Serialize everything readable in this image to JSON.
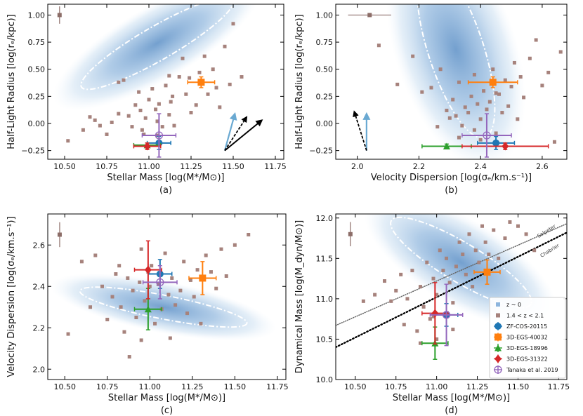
{
  "chart_data": [
    {
      "panel": "(a)",
      "type": "scatter",
      "xlabel": "Stellar Mass [log(M*/M⊙)]",
      "ylabel": "Half-Light Radius [log(rₑ/kpc)]",
      "xlim": [
        10.4,
        11.8
      ],
      "ylim": [
        -0.33,
        1.1
      ],
      "xticks": [
        "10.50",
        "10.75",
        "11.00",
        "11.25",
        "11.50",
        "11.75"
      ],
      "yticks": [
        "−0.25",
        "0.00",
        "0.25",
        "0.50",
        "0.75",
        "1.00"
      ],
      "density_ellipse": {
        "cx": 11.05,
        "cy": 0.74,
        "rx": 0.52,
        "ry": 0.1,
        "angle": 30
      },
      "typical_error": {
        "x": 10.47,
        "y": 1.0,
        "yerr": 0.08
      },
      "background_points": [
        [
          10.52,
          -0.16
        ],
        [
          10.61,
          -0.06
        ],
        [
          10.65,
          0.06
        ],
        [
          10.68,
          0.03
        ],
        [
          10.71,
          -0.02
        ],
        [
          10.75,
          -0.1
        ],
        [
          10.78,
          0.01
        ],
        [
          10.82,
          0.09
        ],
        [
          10.85,
          0.4
        ],
        [
          10.88,
          0.07
        ],
        [
          10.9,
          -0.03
        ],
        [
          10.92,
          0.17
        ],
        [
          10.95,
          0.12
        ],
        [
          10.96,
          -0.06
        ],
        [
          10.98,
          0.05
        ],
        [
          11.0,
          0.22
        ],
        [
          11.02,
          0.32
        ],
        [
          11.04,
          0.13
        ],
        [
          11.05,
          0.02
        ],
        [
          11.06,
          0.18
        ],
        [
          11.08,
          -0.03
        ],
        [
          11.1,
          0.35
        ],
        [
          11.12,
          0.08
        ],
        [
          11.14,
          0.25
        ],
        [
          11.15,
          -0.02
        ],
        [
          11.18,
          0.43
        ],
        [
          11.2,
          0.6
        ],
        [
          11.22,
          0.27
        ],
        [
          11.25,
          0.1
        ],
        [
          11.28,
          0.17
        ],
        [
          11.3,
          0.47
        ],
        [
          11.33,
          0.62
        ],
        [
          11.35,
          0.27
        ],
        [
          11.38,
          0.5
        ],
        [
          11.4,
          0.33
        ],
        [
          11.42,
          0.15
        ],
        [
          11.45,
          0.71
        ],
        [
          11.48,
          0.36
        ],
        [
          11.5,
          0.92
        ],
        [
          11.55,
          0.43
        ],
        [
          10.82,
          0.38
        ],
        [
          10.94,
          0.29
        ],
        [
          11.12,
          0.44
        ],
        [
          11.24,
          0.42
        ],
        [
          11.05,
          -0.11
        ],
        [
          10.97,
          -0.1
        ],
        [
          11.13,
          0.2
        ]
      ],
      "highlighted": [
        {
          "name": "ZF-COS-20115",
          "x": 11.06,
          "y": -0.18,
          "xerr": 0.07,
          "yerr": 0.06
        },
        {
          "name": "3D-EGS-40032",
          "x": 11.31,
          "y": 0.38,
          "xerr": 0.08,
          "yerr": 0.05
        },
        {
          "name": "3D-EGS-18996",
          "x": 10.99,
          "y": -0.2,
          "xerr": 0.08,
          "yerr": 0.02
        },
        {
          "name": "3D-EGS-31322",
          "x": 10.99,
          "y": -0.21,
          "xerr": 0.08,
          "yerr": 0.03
        },
        {
          "name": "Tanaka et al. 2019",
          "x": 11.06,
          "y": -0.11,
          "xerr": 0.1,
          "yerr": 0.2
        }
      ],
      "arrows": [
        {
          "x0": 11.45,
          "y0": -0.25,
          "x1": 11.51,
          "y1": 0.09,
          "style": "light-blue"
        },
        {
          "x0": 11.45,
          "y0": -0.25,
          "x1": 11.58,
          "y1": 0.06,
          "style": "black-dashed"
        },
        {
          "x0": 11.45,
          "y0": -0.25,
          "x1": 11.67,
          "y1": 0.03,
          "style": "black"
        }
      ]
    },
    {
      "panel": "(b)",
      "type": "scatter",
      "xlabel": "Velocity Dispersion [log(σₑ/km.s⁻¹)]",
      "ylabel": "Half-Light Radius [log(rₑ/kpc)]",
      "xlim": [
        1.93,
        2.68
      ],
      "ylim": [
        -0.33,
        1.1
      ],
      "xticks": [
        "2.0",
        "2.2",
        "2.4",
        "2.6"
      ],
      "yticks": [
        "−0.25",
        "0.00",
        "0.25",
        "0.50",
        "0.75",
        "1.00"
      ],
      "density_ellipse": {
        "cx": 2.32,
        "cy": 0.68,
        "rx": 0.3,
        "ry": 0.09,
        "angle": 108
      },
      "typical_error": {
        "x": 2.04,
        "y": 1.0,
        "xerr": 0.07
      },
      "background_points": [
        [
          2.07,
          0.72
        ],
        [
          2.13,
          0.36
        ],
        [
          2.18,
          0.62
        ],
        [
          2.21,
          0.29
        ],
        [
          2.24,
          0.33
        ],
        [
          2.27,
          0.5
        ],
        [
          2.29,
          0.12
        ],
        [
          2.3,
          0.05
        ],
        [
          2.31,
          0.22
        ],
        [
          2.32,
          0.07
        ],
        [
          2.33,
          0.38
        ],
        [
          2.34,
          -0.02
        ],
        [
          2.35,
          0.15
        ],
        [
          2.36,
          0.1
        ],
        [
          2.37,
          0.25
        ],
        [
          2.38,
          -0.06
        ],
        [
          2.39,
          0.18
        ],
        [
          2.4,
          0.04
        ],
        [
          2.41,
          0.3
        ],
        [
          2.42,
          0.13
        ],
        [
          2.43,
          0.2
        ],
        [
          2.44,
          0.5
        ],
        [
          2.45,
          -0.09
        ],
        [
          2.46,
          0.27
        ],
        [
          2.47,
          0.1
        ],
        [
          2.48,
          0.4
        ],
        [
          2.49,
          0.16
        ],
        [
          2.5,
          0.34
        ],
        [
          2.51,
          0.56
        ],
        [
          2.52,
          0.04
        ],
        [
          2.53,
          0.43
        ],
        [
          2.54,
          0.24
        ],
        [
          2.56,
          0.6
        ],
        [
          2.58,
          0.77
        ],
        [
          2.6,
          0.35
        ],
        [
          2.62,
          0.47
        ],
        [
          2.64,
          -0.17
        ],
        [
          2.66,
          0.66
        ],
        [
          2.33,
          -0.13
        ],
        [
          2.38,
          0.45
        ],
        [
          2.45,
          0.28
        ],
        [
          2.26,
          -0.03
        ],
        [
          2.4,
          -0.15
        ]
      ],
      "highlighted": [
        {
          "name": "ZF-COS-20115",
          "x": 2.45,
          "y": -0.18,
          "xerr": 0.06,
          "yerr": 0.06
        },
        {
          "name": "3D-EGS-40032",
          "x": 2.44,
          "y": 0.38,
          "xerr": 0.08,
          "yerr": 0.05
        },
        {
          "name": "3D-EGS-18996",
          "x": 2.29,
          "y": -0.21,
          "xerr": 0.08,
          "yerr": 0.02
        },
        {
          "name": "3D-EGS-31322",
          "x": 2.48,
          "y": -0.21,
          "xerr": 0.14,
          "yerr": 0.03
        },
        {
          "name": "Tanaka et al. 2019",
          "x": 2.42,
          "y": -0.11,
          "xerr": 0.08,
          "yerr": 0.2
        }
      ],
      "arrows": [
        {
          "x0": 2.03,
          "y0": -0.25,
          "x1": 2.03,
          "y1": 0.09,
          "style": "light-blue"
        },
        {
          "x0": 2.03,
          "y0": -0.25,
          "x1": 1.99,
          "y1": 0.11,
          "style": "black-dashed"
        }
      ]
    },
    {
      "panel": "(c)",
      "type": "scatter",
      "xlabel": "Stellar Mass [log(M*/M⊙)]",
      "ylabel": "Velocity Dispersion [log(σₑ/km.s⁻¹)]",
      "xlim": [
        10.4,
        11.8
      ],
      "ylim": [
        1.95,
        2.75
      ],
      "xticks": [
        "10.50",
        "10.75",
        "11.00",
        "11.25",
        "11.50",
        "11.75"
      ],
      "yticks": [
        "2.0",
        "2.2",
        "2.4",
        "2.6"
      ],
      "density_ellipse": {
        "cx": 11.08,
        "cy": 2.3,
        "rx": 0.5,
        "ry": 0.07,
        "angle": -11
      },
      "typical_error": {
        "x": 10.47,
        "y": 2.65,
        "yerr": 0.06
      },
      "background_points": [
        [
          10.52,
          2.17
        ],
        [
          10.6,
          2.52
        ],
        [
          10.65,
          2.3
        ],
        [
          10.68,
          2.55
        ],
        [
          10.72,
          2.4
        ],
        [
          10.75,
          2.24
        ],
        [
          10.78,
          2.35
        ],
        [
          10.8,
          2.46
        ],
        [
          10.83,
          2.3
        ],
        [
          10.85,
          2.18
        ],
        [
          10.87,
          2.44
        ],
        [
          10.88,
          2.06
        ],
        [
          10.9,
          2.38
        ],
        [
          10.92,
          2.25
        ],
        [
          10.94,
          2.42
        ],
        [
          10.95,
          2.14
        ],
        [
          10.97,
          2.33
        ],
        [
          10.99,
          2.47
        ],
        [
          11.01,
          2.5
        ],
        [
          11.03,
          2.22
        ],
        [
          11.05,
          2.41
        ],
        [
          11.07,
          2.29
        ],
        [
          11.09,
          2.56
        ],
        [
          11.11,
          2.36
        ],
        [
          11.13,
          2.44
        ],
        [
          11.15,
          2.31
        ],
        [
          11.18,
          2.38
        ],
        [
          11.2,
          2.52
        ],
        [
          11.22,
          2.27
        ],
        [
          11.24,
          2.43
        ],
        [
          11.26,
          2.35
        ],
        [
          11.28,
          2.48
        ],
        [
          11.3,
          2.22
        ],
        [
          11.33,
          2.55
        ],
        [
          11.36,
          2.47
        ],
        [
          11.39,
          2.39
        ],
        [
          11.42,
          2.58
        ],
        [
          11.45,
          2.45
        ],
        [
          11.5,
          2.6
        ],
        [
          11.58,
          2.65
        ],
        [
          10.95,
          2.58
        ],
        [
          10.82,
          2.5
        ],
        [
          11.12,
          2.15
        ],
        [
          11.0,
          2.4
        ]
      ],
      "highlighted": [
        {
          "name": "ZF-COS-20115",
          "x": 11.06,
          "y": 2.46,
          "xerr": 0.07,
          "yerr": 0.07
        },
        {
          "name": "3D-EGS-40032",
          "x": 11.31,
          "y": 2.44,
          "xerr": 0.08,
          "yerr": 0.08
        },
        {
          "name": "3D-EGS-18996",
          "x": 10.99,
          "y": 2.29,
          "xerr": 0.08,
          "yerr": 0.1
        },
        {
          "name": "3D-EGS-31322",
          "x": 10.99,
          "y": 2.48,
          "xerr": 0.08,
          "yerr": 0.14
        },
        {
          "name": "Tanaka et al. 2019",
          "x": 11.06,
          "y": 2.42,
          "xerr": 0.1,
          "yerr": 0.08
        }
      ]
    },
    {
      "panel": "(d)",
      "type": "scatter",
      "xlabel": "Stellar Mass [log(M*/M⊙)]",
      "ylabel": "Dynamical Mass [log(M_dyn/M⊙)]",
      "xlim": [
        10.38,
        11.8
      ],
      "ylim": [
        10.0,
        12.05
      ],
      "xticks": [
        "10.50",
        "10.75",
        "11.00",
        "11.25",
        "11.50",
        "11.75"
      ],
      "yticks": [
        "10.0",
        "10.5",
        "11.0",
        "11.5",
        "12.0"
      ],
      "density_ellipse": {
        "cx": 11.15,
        "cy": 11.45,
        "rx": 0.5,
        "ry": 0.12,
        "angle": -31
      },
      "typical_error": {
        "x": 10.47,
        "y": 11.8,
        "yerr": 0.15
      },
      "reference_lines": [
        {
          "name": "Salpeter",
          "x": [
            10.38,
            11.8
          ],
          "y": [
            10.67,
            11.93
          ],
          "style": "dotted-gray"
        },
        {
          "name": "Chabrier",
          "x": [
            10.38,
            11.8
          ],
          "y": [
            10.4,
            11.82
          ],
          "style": "dotted-black"
        }
      ],
      "line_labels": [
        "Salpeter",
        "Chabrier"
      ],
      "background_points": [
        [
          10.55,
          10.97
        ],
        [
          10.62,
          11.05
        ],
        [
          10.68,
          11.22
        ],
        [
          10.72,
          10.97
        ],
        [
          10.75,
          11.1
        ],
        [
          10.78,
          11.3
        ],
        [
          10.8,
          10.68
        ],
        [
          10.82,
          11.0
        ],
        [
          10.85,
          11.35
        ],
        [
          10.88,
          10.6
        ],
        [
          10.9,
          11.15
        ],
        [
          10.92,
          10.9
        ],
        [
          10.94,
          11.45
        ],
        [
          10.96,
          10.75
        ],
        [
          10.98,
          11.25
        ],
        [
          11.0,
          11.05
        ],
        [
          11.02,
          11.6
        ],
        [
          11.04,
          11.35
        ],
        [
          11.06,
          11.5
        ],
        [
          11.08,
          11.2
        ],
        [
          11.1,
          10.95
        ],
        [
          11.12,
          11.4
        ],
        [
          11.14,
          11.7
        ],
        [
          11.16,
          11.55
        ],
        [
          11.18,
          11.3
        ],
        [
          11.2,
          11.8
        ],
        [
          11.22,
          11.15
        ],
        [
          11.24,
          11.6
        ],
        [
          11.26,
          11.45
        ],
        [
          11.28,
          11.9
        ],
        [
          11.3,
          11.7
        ],
        [
          11.32,
          11.55
        ],
        [
          11.35,
          11.85
        ],
        [
          11.38,
          11.5
        ],
        [
          11.42,
          11.75
        ],
        [
          11.45,
          11.95
        ],
        [
          11.5,
          11.9
        ],
        [
          11.55,
          11.8
        ],
        [
          11.6,
          11.6
        ],
        [
          10.9,
          10.45
        ],
        [
          11.0,
          10.5
        ],
        [
          11.1,
          10.62
        ],
        [
          10.98,
          10.78
        ]
      ],
      "highlighted": [
        {
          "name": "ZF-COS-20115",
          "x": 11.06,
          "y": 10.8,
          "xerr": 0.07,
          "yerr": 0.14
        },
        {
          "name": "3D-EGS-40032",
          "x": 11.31,
          "y": 11.33,
          "xerr": 0.08,
          "yerr": 0.15
        },
        {
          "name": "3D-EGS-18996",
          "x": 10.99,
          "y": 10.45,
          "xerr": 0.08,
          "yerr": 0.2
        },
        {
          "name": "3D-EGS-31322",
          "x": 10.99,
          "y": 10.82,
          "xerr": 0.08,
          "yerr": 0.38
        },
        {
          "name": "Tanaka et al. 2019",
          "x": 11.06,
          "y": 10.8,
          "xerr": 0.1,
          "yerr": 0.38
        }
      ],
      "legend": {
        "placement": "lower-right",
        "entries": [
          {
            "label": "z ∼ 0",
            "marker": "square-light-blue"
          },
          {
            "label": "1.4 < z < 2.1",
            "marker": "square-brown"
          },
          {
            "label": "ZF-COS-20115",
            "marker": "circle"
          },
          {
            "label": "3D-EGS-40032",
            "marker": "square"
          },
          {
            "label": "3D-EGS-18996",
            "marker": "triangle"
          },
          {
            "label": "3D-EGS-31322",
            "marker": "diamond"
          },
          {
            "label": "Tanaka et al. 2019",
            "marker": "open-circle-cross"
          }
        ]
      }
    }
  ],
  "colors": {
    "ZF-COS-20115": "#1f77b4",
    "3D-EGS-40032": "#ff7f0e",
    "3D-EGS-18996": "#2ca02c",
    "3D-EGS-31322": "#d62728",
    "Tanaka et al. 2019": "#9467bd",
    "background": "#a6827c",
    "density": "#7aa9d6",
    "light_arrow": "#6aa9d2"
  }
}
